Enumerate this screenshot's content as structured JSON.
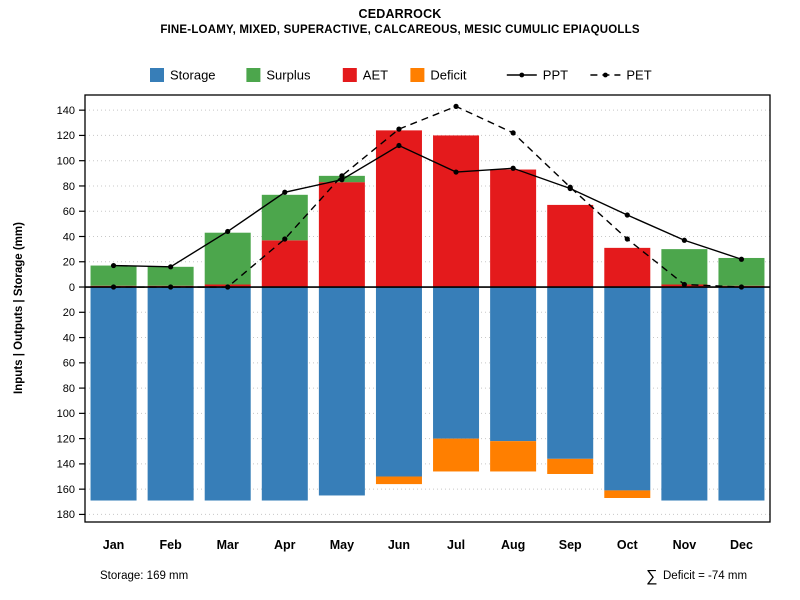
{
  "title": "CEDARROCK",
  "subtitle": "FINE-LOAMY, MIXED, SUPERACTIVE, CALCAREOUS, MESIC CUMULIC EPIAQUOLLS",
  "footer": {
    "storage_note": "Storage: 169 mm",
    "sigma": "∑",
    "deficit_note": "Deficit = -74 mm"
  },
  "chart_data": {
    "type": "bar",
    "title": "CEDARROCK",
    "subtitle": "FINE-LOAMY, MIXED, SUPERACTIVE, CALCAREOUS, MESIC CUMULIC EPIAQUOLLS",
    "xlabel": "",
    "ylabel": "Inputs | Outputs | Storage   (mm)",
    "categories": [
      "Jan",
      "Feb",
      "Mar",
      "Apr",
      "May",
      "Jun",
      "Jul",
      "Aug",
      "Sep",
      "Oct",
      "Nov",
      "Dec"
    ],
    "series": [
      {
        "name": "Storage",
        "direction": "down",
        "color": "#377EB8",
        "values": [
          169,
          169,
          169,
          169,
          165,
          150,
          120,
          122,
          136,
          161,
          169,
          169
        ]
      },
      {
        "name": "Deficit",
        "direction": "down",
        "color": "#FF7F00",
        "values": [
          0,
          0,
          0,
          0,
          0,
          6,
          26,
          24,
          12,
          6,
          0,
          0
        ]
      },
      {
        "name": "AET",
        "direction": "up",
        "color": "#E41A1C",
        "values": [
          1,
          1,
          2,
          37,
          83,
          124,
          120,
          93,
          65,
          31,
          2,
          1
        ]
      },
      {
        "name": "Surplus",
        "direction": "up",
        "color": "#4CA64C",
        "values": [
          16,
          15,
          41,
          36,
          5,
          0,
          0,
          0,
          0,
          0,
          28,
          22
        ]
      }
    ],
    "lines": [
      {
        "name": "PPT",
        "style": "solid",
        "values": [
          17,
          16,
          44,
          75,
          85,
          112,
          91,
          94,
          78,
          57,
          37,
          22
        ]
      },
      {
        "name": "PET",
        "style": "dashed",
        "values": [
          0,
          0,
          0,
          38,
          88,
          125,
          143,
          122,
          79,
          38,
          2,
          0
        ]
      }
    ],
    "y_axis": {
      "upper_ticks": [
        0,
        20,
        40,
        60,
        80,
        100,
        120,
        140
      ],
      "lower_ticks": [
        20,
        40,
        60,
        80,
        100,
        120,
        140,
        160,
        180
      ],
      "upper_max": 152,
      "lower_max": 186
    },
    "legend_position": "top",
    "grid": true,
    "legend": [
      {
        "label": "Storage",
        "type": "swatch",
        "color": "#377EB8"
      },
      {
        "label": "Surplus",
        "type": "swatch",
        "color": "#4CA64C"
      },
      {
        "label": "AET",
        "type": "swatch",
        "color": "#E41A1C"
      },
      {
        "label": "Deficit",
        "type": "swatch",
        "color": "#FF7F00"
      },
      {
        "label": "PPT",
        "type": "line",
        "dash": ""
      },
      {
        "label": "PET",
        "type": "line",
        "dash": "7,5"
      }
    ]
  }
}
